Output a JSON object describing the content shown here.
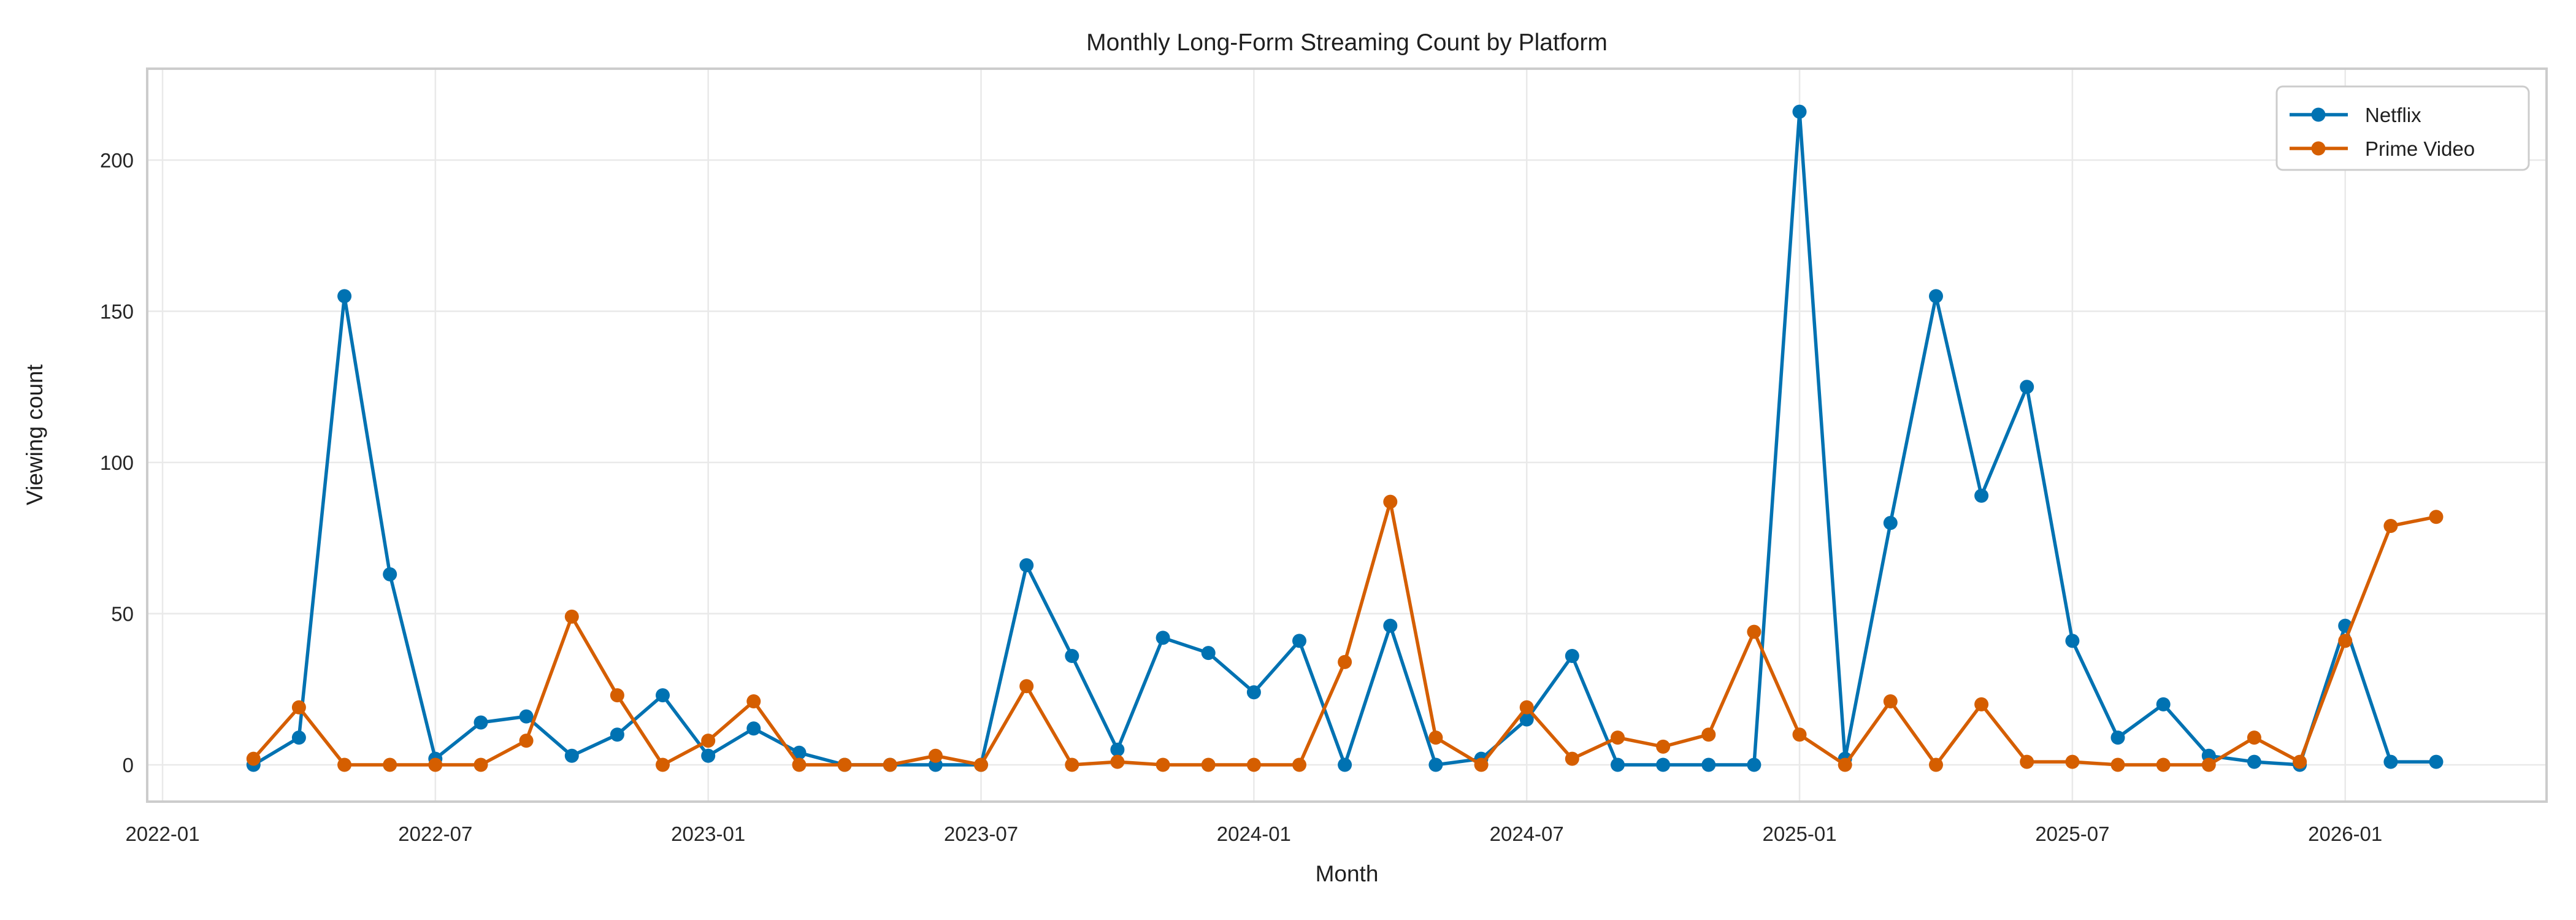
{
  "figure": {
    "title": "Monthly Long-Form Streaming Count by Platform",
    "xlabel": "Month",
    "ylabel": "Viewing count"
  },
  "style": {
    "background": "#ffffff",
    "spine_color": "#cccccc",
    "grid_color": "#e9e9e9",
    "tick_label_color": "#262626",
    "netflix_color": "#0072b2",
    "prime_color": "#d55e00"
  },
  "legend": {
    "position": "upper right",
    "items": [
      {
        "label": "Netflix",
        "color": "#0072b2"
      },
      {
        "label": "Prime Video",
        "color": "#d55e00"
      }
    ]
  },
  "chart_data": {
    "type": "line",
    "title": "Monthly Long-Form Streaming Count by Platform",
    "xlabel": "Month",
    "ylabel": "Viewing count",
    "grid": true,
    "legend_position": "upper right",
    "marker": "circle",
    "x_ticks": [
      "2022-01",
      "2022-07",
      "2023-01",
      "2023-07",
      "2024-01",
      "2024-07",
      "2025-01",
      "2025-07",
      "2026-01"
    ],
    "y_ticks": [
      0,
      50,
      100,
      150,
      200
    ],
    "ylim": [
      -12,
      230
    ],
    "x": [
      "2022-03",
      "2022-04",
      "2022-05",
      "2022-06",
      "2022-07",
      "2022-08",
      "2022-09",
      "2022-10",
      "2022-11",
      "2022-12",
      "2023-01",
      "2023-02",
      "2023-03",
      "2023-04",
      "2023-05",
      "2023-06",
      "2023-07",
      "2023-08",
      "2023-09",
      "2023-10",
      "2023-11",
      "2023-12",
      "2024-01",
      "2024-02",
      "2024-03",
      "2024-04",
      "2024-05",
      "2024-06",
      "2024-07",
      "2024-08",
      "2024-09",
      "2024-10",
      "2024-11",
      "2024-12",
      "2025-01",
      "2025-02",
      "2025-03",
      "2025-04",
      "2025-05",
      "2025-06",
      "2025-07",
      "2025-08",
      "2025-09",
      "2025-10",
      "2025-11",
      "2025-12",
      "2026-01",
      "2026-02",
      "2026-03"
    ],
    "series": [
      {
        "name": "Netflix",
        "color": "#0072b2",
        "values": [
          0,
          9,
          155,
          63,
          2,
          14,
          16,
          3,
          10,
          23,
          3,
          12,
          4,
          0,
          0,
          0,
          0,
          66,
          36,
          5,
          42,
          37,
          24,
          41,
          0,
          46,
          0,
          2,
          15,
          36,
          0,
          0,
          0,
          0,
          216,
          2,
          80,
          155,
          89,
          125,
          41,
          9,
          20,
          3,
          1,
          0,
          46,
          1,
          1
        ]
      },
      {
        "name": "Prime Video",
        "color": "#d55e00",
        "values": [
          2,
          19,
          0,
          0,
          0,
          0,
          8,
          49,
          23,
          0,
          8,
          21,
          0,
          0,
          0,
          3,
          0,
          26,
          0,
          1,
          0,
          0,
          0,
          0,
          34,
          87,
          9,
          0,
          19,
          2,
          9,
          6,
          10,
          44,
          10,
          0,
          21,
          0,
          20,
          1,
          1,
          0,
          0,
          0,
          9,
          1,
          41,
          79,
          82
        ]
      }
    ]
  }
}
